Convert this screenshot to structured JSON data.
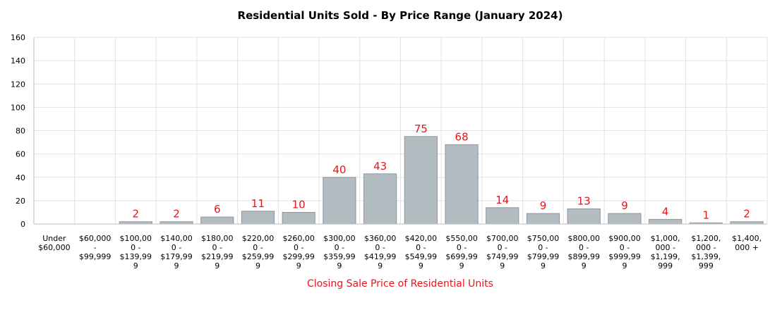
{
  "chart_data": {
    "type": "bar",
    "title": "Residential Units Sold - By Price Range (January 2024)",
    "xlabel": "Closing Sale Price of Residential Units",
    "ylabel": "",
    "ylim": [
      0,
      160
    ],
    "yticks": [
      0,
      20,
      40,
      60,
      80,
      100,
      120,
      140,
      160
    ],
    "grid": true,
    "categories": [
      [
        "Under",
        "$60,000"
      ],
      [
        "$60,000",
        "-",
        "$99,999"
      ],
      [
        "$100,00",
        "0 -",
        "$139,99",
        "9"
      ],
      [
        "$140,00",
        "0 -",
        "$179,99",
        "9"
      ],
      [
        "$180,00",
        "0 -",
        "$219,99",
        "9"
      ],
      [
        "$220,00",
        "0 -",
        "$259,99",
        "9"
      ],
      [
        "$260,00",
        "0 -",
        "$299,99",
        "9"
      ],
      [
        "$300,00",
        "0 -",
        "$359,99",
        "9"
      ],
      [
        "$360,00",
        "0 -",
        "$419,99",
        "9"
      ],
      [
        "$420,00",
        "0 -",
        "$549,99",
        "9"
      ],
      [
        "$550,00",
        "0 -",
        "$699,99",
        "9"
      ],
      [
        "$700,00",
        "0 -",
        "$749,99",
        "9"
      ],
      [
        "$750,00",
        "0 -",
        "$799,99",
        "9"
      ],
      [
        "$800,00",
        "0 -",
        "$899,99",
        "9"
      ],
      [
        "$900,00",
        "0 -",
        "$999,99",
        "9"
      ],
      [
        "$1,000,",
        "000 -",
        "$1,199,",
        "999"
      ],
      [
        "$1,200,",
        "000 -",
        "$1,399,",
        "999"
      ],
      [
        "$1,400,",
        "000 +"
      ]
    ],
    "values": [
      0,
      0,
      2,
      2,
      6,
      11,
      10,
      40,
      43,
      75,
      68,
      14,
      9,
      13,
      9,
      4,
      1,
      2
    ],
    "data_labels": [
      "",
      "",
      "2",
      "2",
      "6",
      "11",
      "10",
      "40",
      "43",
      "75",
      "68",
      "14",
      "9",
      "13",
      "9",
      "4",
      "1",
      "2"
    ],
    "colors": {
      "bar_fill": "#b3bcc1",
      "bar_stroke": "#8d969b",
      "label": "#e8141c",
      "grid": "#e2e2e2"
    }
  }
}
